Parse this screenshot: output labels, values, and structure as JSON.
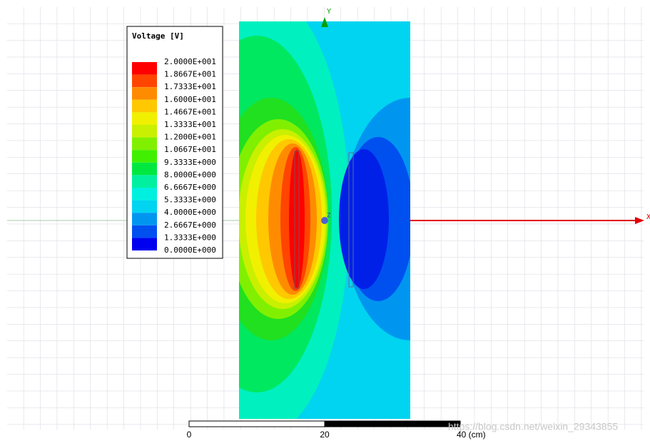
{
  "legend": {
    "title": "Voltage [V]",
    "labels": [
      "2.0000E+001",
      "1.8667E+001",
      "1.7333E+001",
      "1.6000E+001",
      "1.4667E+001",
      "1.3333E+001",
      "1.2000E+001",
      "1.0667E+001",
      "9.3333E+000",
      "8.0000E+000",
      "6.6667E+000",
      "5.3333E+000",
      "4.0000E+000",
      "2.6667E+000",
      "1.3333E+000",
      "0.0000E+000"
    ]
  },
  "axes": {
    "x": "X",
    "y": "Y",
    "z": "Z"
  },
  "scale_bar": {
    "labels": [
      "0",
      "20",
      "40 (cm)"
    ]
  },
  "watermark": "https://blog.csdn.net/weixin_29343855"
}
